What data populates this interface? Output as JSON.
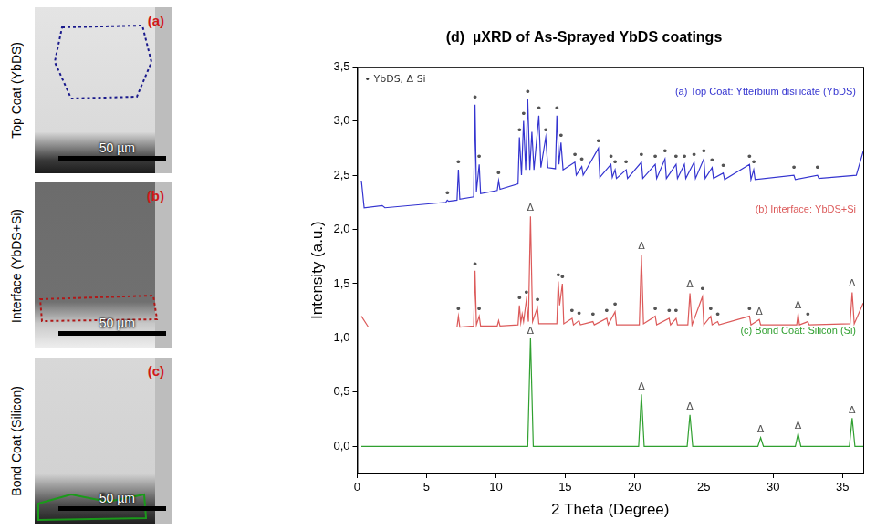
{
  "panels": [
    {
      "letter": "(a)",
      "label": "Top Coat (YbDS)",
      "scale_bar": "50 µm"
    },
    {
      "letter": "(b)",
      "label": "Interface (YbDS+Si)",
      "scale_bar": "50 µm"
    },
    {
      "letter": "(c)",
      "label": "Bond Coat (Silicon)",
      "scale_bar": "50 µm"
    }
  ],
  "chart_data": {
    "type": "line",
    "title": "(d)  µXRD of As-Sprayed YbDS coatings",
    "x_label": "2 Theta (Degree)",
    "y_label": "Intensity (a.u.)",
    "annotation": "• YbDS, Δ Si",
    "xlim": [
      0,
      36.5
    ],
    "xticks": [
      0,
      5,
      10,
      15,
      20,
      25,
      30,
      35
    ],
    "ylim": [
      -0.25,
      3.5
    ],
    "yticks": [
      {
        "value": 0,
        "label": "0,0"
      },
      {
        "value": 0.5,
        "label": "0,5"
      },
      {
        "value": 1,
        "label": "1,0"
      },
      {
        "value": 1.5,
        "label": "1,5"
      },
      {
        "value": 2,
        "label": "2,0"
      },
      {
        "value": 2.5,
        "label": "2,5"
      },
      {
        "value": 3,
        "label": "3,0"
      },
      {
        "value": 3.5,
        "label": "3,5"
      }
    ],
    "grid": false,
    "series": [
      {
        "name": "(a) Top Coat: Ytterbium disilicate (YbDS)",
        "color": "#3434d0",
        "x": [
          0.3,
          0.5,
          1.8,
          2.0,
          6.4,
          6.5,
          6.6,
          7.2,
          7.3,
          7.4,
          8.4,
          8.5,
          8.6,
          8.8,
          8.9,
          10.1,
          10.2,
          10.3,
          11.6,
          11.7,
          11.85,
          12.0,
          12.15,
          12.3,
          12.45,
          12.6,
          12.75,
          13.1,
          13.25,
          13.6,
          13.75,
          14.3,
          14.4,
          14.55,
          14.7,
          14.85,
          15.7,
          15.8,
          16.2,
          16.3,
          17.4,
          17.5,
          18.3,
          18.4,
          18.6,
          18.7,
          19.4,
          19.5,
          20.5,
          20.6,
          21.5,
          21.6,
          22.2,
          22.3,
          23.0,
          23.1,
          23.6,
          23.7,
          24.3,
          24.4,
          25.0,
          25.1,
          25.6,
          25.7,
          26.4,
          26.5,
          28.3,
          28.4,
          28.6,
          28.7,
          31.5,
          31.6,
          33.2,
          33.3,
          36.0,
          36.5
        ],
        "values": [
          2.45,
          2.2,
          2.22,
          2.2,
          2.25,
          2.27,
          2.26,
          2.27,
          2.55,
          2.28,
          2.3,
          3.15,
          2.35,
          2.6,
          2.33,
          2.36,
          2.45,
          2.37,
          2.42,
          2.85,
          2.5,
          3.0,
          2.55,
          3.2,
          2.55,
          2.9,
          2.55,
          3.05,
          2.57,
          2.85,
          2.57,
          2.56,
          3.05,
          2.6,
          2.8,
          2.55,
          2.62,
          2.5,
          2.58,
          2.5,
          2.75,
          2.48,
          2.6,
          2.48,
          2.55,
          2.47,
          2.55,
          2.47,
          2.62,
          2.47,
          2.6,
          2.47,
          2.65,
          2.47,
          2.6,
          2.47,
          2.6,
          2.47,
          2.62,
          2.47,
          2.65,
          2.47,
          2.57,
          2.47,
          2.52,
          2.46,
          2.6,
          2.46,
          2.55,
          2.46,
          2.5,
          2.46,
          2.5,
          2.47,
          2.5,
          2.72
        ]
      },
      {
        "name": "(b) Interface: YbDS+Si",
        "color": "#dc5a5a",
        "x": [
          0.3,
          0.8,
          7.2,
          7.3,
          7.4,
          8.4,
          8.5,
          8.6,
          8.8,
          8.9,
          10.1,
          10.2,
          10.3,
          11.6,
          11.7,
          11.8,
          11.9,
          12.0,
          12.2,
          12.35,
          12.5,
          12.65,
          13.0,
          13.1,
          14.4,
          14.5,
          14.6,
          14.8,
          14.9,
          15.5,
          15.6,
          16.0,
          16.1,
          17.0,
          17.1,
          18.0,
          18.1,
          18.6,
          18.7,
          20.35,
          20.5,
          20.65,
          21.5,
          21.6,
          22.5,
          22.6,
          23.0,
          23.1,
          23.85,
          24.0,
          24.15,
          24.9,
          25.0,
          25.5,
          25.6,
          26.0,
          26.1,
          28.3,
          28.4,
          29.0,
          29.1,
          31.7,
          31.8,
          31.9,
          32.5,
          32.6,
          35.55,
          35.7,
          35.85,
          36.5
        ],
        "values": [
          1.2,
          1.1,
          1.1,
          1.2,
          1.1,
          1.11,
          1.62,
          1.12,
          1.2,
          1.11,
          1.11,
          1.16,
          1.11,
          1.12,
          1.3,
          1.14,
          1.22,
          1.15,
          1.35,
          1.15,
          2.12,
          1.15,
          1.28,
          1.13,
          1.13,
          1.52,
          1.3,
          1.5,
          1.13,
          1.18,
          1.12,
          1.16,
          1.12,
          1.15,
          1.12,
          1.18,
          1.12,
          1.24,
          1.12,
          1.12,
          1.76,
          1.13,
          1.2,
          1.12,
          1.18,
          1.12,
          1.18,
          1.12,
          1.12,
          1.41,
          1.12,
          1.38,
          1.12,
          1.2,
          1.12,
          1.15,
          1.12,
          1.2,
          1.12,
          1.17,
          1.12,
          1.12,
          1.22,
          1.12,
          1.15,
          1.12,
          1.13,
          1.42,
          1.13,
          1.32
        ]
      },
      {
        "name": "(c) Bond Coat: Silicon (Si)",
        "color": "#30a030",
        "x": [
          0.3,
          12.3,
          12.5,
          12.7,
          20.3,
          20.5,
          20.7,
          23.8,
          24.0,
          24.2,
          28.9,
          29.1,
          29.3,
          31.6,
          31.8,
          32.0,
          35.5,
          35.7,
          35.9,
          36.5
        ],
        "values": [
          0.0,
          0.0,
          1.0,
          0.0,
          0.0,
          0.48,
          0.0,
          0.0,
          0.29,
          0.0,
          0.0,
          0.08,
          0.0,
          0.0,
          0.12,
          0.0,
          0.0,
          0.26,
          0.0,
          0.0
        ]
      }
    ],
    "peak_marks": [
      {
        "x": 6.5,
        "y": 2.33,
        "symbol": "•"
      },
      {
        "x": 7.3,
        "y": 2.61,
        "symbol": "•"
      },
      {
        "x": 8.5,
        "y": 3.21,
        "symbol": "•"
      },
      {
        "x": 8.8,
        "y": 2.66,
        "symbol": "•"
      },
      {
        "x": 10.2,
        "y": 2.51,
        "symbol": "•"
      },
      {
        "x": 11.7,
        "y": 2.91,
        "symbol": "•"
      },
      {
        "x": 12.0,
        "y": 3.06,
        "symbol": "•"
      },
      {
        "x": 12.3,
        "y": 3.26,
        "symbol": "•"
      },
      {
        "x": 13.1,
        "y": 3.11,
        "symbol": "•"
      },
      {
        "x": 13.6,
        "y": 2.91,
        "symbol": "•"
      },
      {
        "x": 14.4,
        "y": 3.11,
        "symbol": "•"
      },
      {
        "x": 14.7,
        "y": 2.86,
        "symbol": "•"
      },
      {
        "x": 15.7,
        "y": 2.68,
        "symbol": "•"
      },
      {
        "x": 16.2,
        "y": 2.64,
        "symbol": "•"
      },
      {
        "x": 17.4,
        "y": 2.81,
        "symbol": "•"
      },
      {
        "x": 18.3,
        "y": 2.66,
        "symbol": "•"
      },
      {
        "x": 18.6,
        "y": 2.61,
        "symbol": "•"
      },
      {
        "x": 19.4,
        "y": 2.61,
        "symbol": "•"
      },
      {
        "x": 20.5,
        "y": 2.68,
        "symbol": "•"
      },
      {
        "x": 21.5,
        "y": 2.66,
        "symbol": "•"
      },
      {
        "x": 22.2,
        "y": 2.71,
        "symbol": "•"
      },
      {
        "x": 23.0,
        "y": 2.66,
        "symbol": "•"
      },
      {
        "x": 23.6,
        "y": 2.66,
        "symbol": "•"
      },
      {
        "x": 24.3,
        "y": 2.68,
        "symbol": "•"
      },
      {
        "x": 25.0,
        "y": 2.71,
        "symbol": "•"
      },
      {
        "x": 25.6,
        "y": 2.63,
        "symbol": "•"
      },
      {
        "x": 26.4,
        "y": 2.58,
        "symbol": "•"
      },
      {
        "x": 28.3,
        "y": 2.66,
        "symbol": "•"
      },
      {
        "x": 28.6,
        "y": 2.61,
        "symbol": "•"
      },
      {
        "x": 31.5,
        "y": 2.56,
        "symbol": "•"
      },
      {
        "x": 33.2,
        "y": 2.56,
        "symbol": "•"
      },
      {
        "x": 7.3,
        "y": 1.26,
        "symbol": "•"
      },
      {
        "x": 8.5,
        "y": 1.67,
        "symbol": "•"
      },
      {
        "x": 8.8,
        "y": 1.26,
        "symbol": "•"
      },
      {
        "x": 11.7,
        "y": 1.36,
        "symbol": "•"
      },
      {
        "x": 12.2,
        "y": 1.41,
        "symbol": "•"
      },
      {
        "x": 13.0,
        "y": 1.34,
        "symbol": "•"
      },
      {
        "x": 14.5,
        "y": 1.57,
        "symbol": "•"
      },
      {
        "x": 14.8,
        "y": 1.55,
        "symbol": "•"
      },
      {
        "x": 15.5,
        "y": 1.24,
        "symbol": "•"
      },
      {
        "x": 16.0,
        "y": 1.22,
        "symbol": "•"
      },
      {
        "x": 17.0,
        "y": 1.21,
        "symbol": "•"
      },
      {
        "x": 18.0,
        "y": 1.24,
        "symbol": "•"
      },
      {
        "x": 18.6,
        "y": 1.3,
        "symbol": "•"
      },
      {
        "x": 21.5,
        "y": 1.26,
        "symbol": "•"
      },
      {
        "x": 22.5,
        "y": 1.24,
        "symbol": "•"
      },
      {
        "x": 23.0,
        "y": 1.24,
        "symbol": "•"
      },
      {
        "x": 24.9,
        "y": 1.44,
        "symbol": "•"
      },
      {
        "x": 25.5,
        "y": 1.26,
        "symbol": "•"
      },
      {
        "x": 26.0,
        "y": 1.21,
        "symbol": "•"
      },
      {
        "x": 28.3,
        "y": 1.26,
        "symbol": "•"
      },
      {
        "x": 32.5,
        "y": 1.21,
        "symbol": "•"
      },
      {
        "x": 12.5,
        "y": 2.2,
        "symbol": "Δ"
      },
      {
        "x": 20.5,
        "y": 1.84,
        "symbol": "Δ"
      },
      {
        "x": 24.0,
        "y": 1.49,
        "symbol": "Δ"
      },
      {
        "x": 29.0,
        "y": 1.24,
        "symbol": "Δ"
      },
      {
        "x": 31.8,
        "y": 1.3,
        "symbol": "Δ"
      },
      {
        "x": 35.7,
        "y": 1.5,
        "symbol": "Δ"
      },
      {
        "x": 12.5,
        "y": 1.06,
        "symbol": "Δ"
      },
      {
        "x": 20.5,
        "y": 0.55,
        "symbol": "Δ"
      },
      {
        "x": 24.0,
        "y": 0.36,
        "symbol": "Δ"
      },
      {
        "x": 29.1,
        "y": 0.15,
        "symbol": "Δ"
      },
      {
        "x": 31.8,
        "y": 0.19,
        "symbol": "Δ"
      },
      {
        "x": 35.7,
        "y": 0.33,
        "symbol": "Δ"
      }
    ]
  }
}
